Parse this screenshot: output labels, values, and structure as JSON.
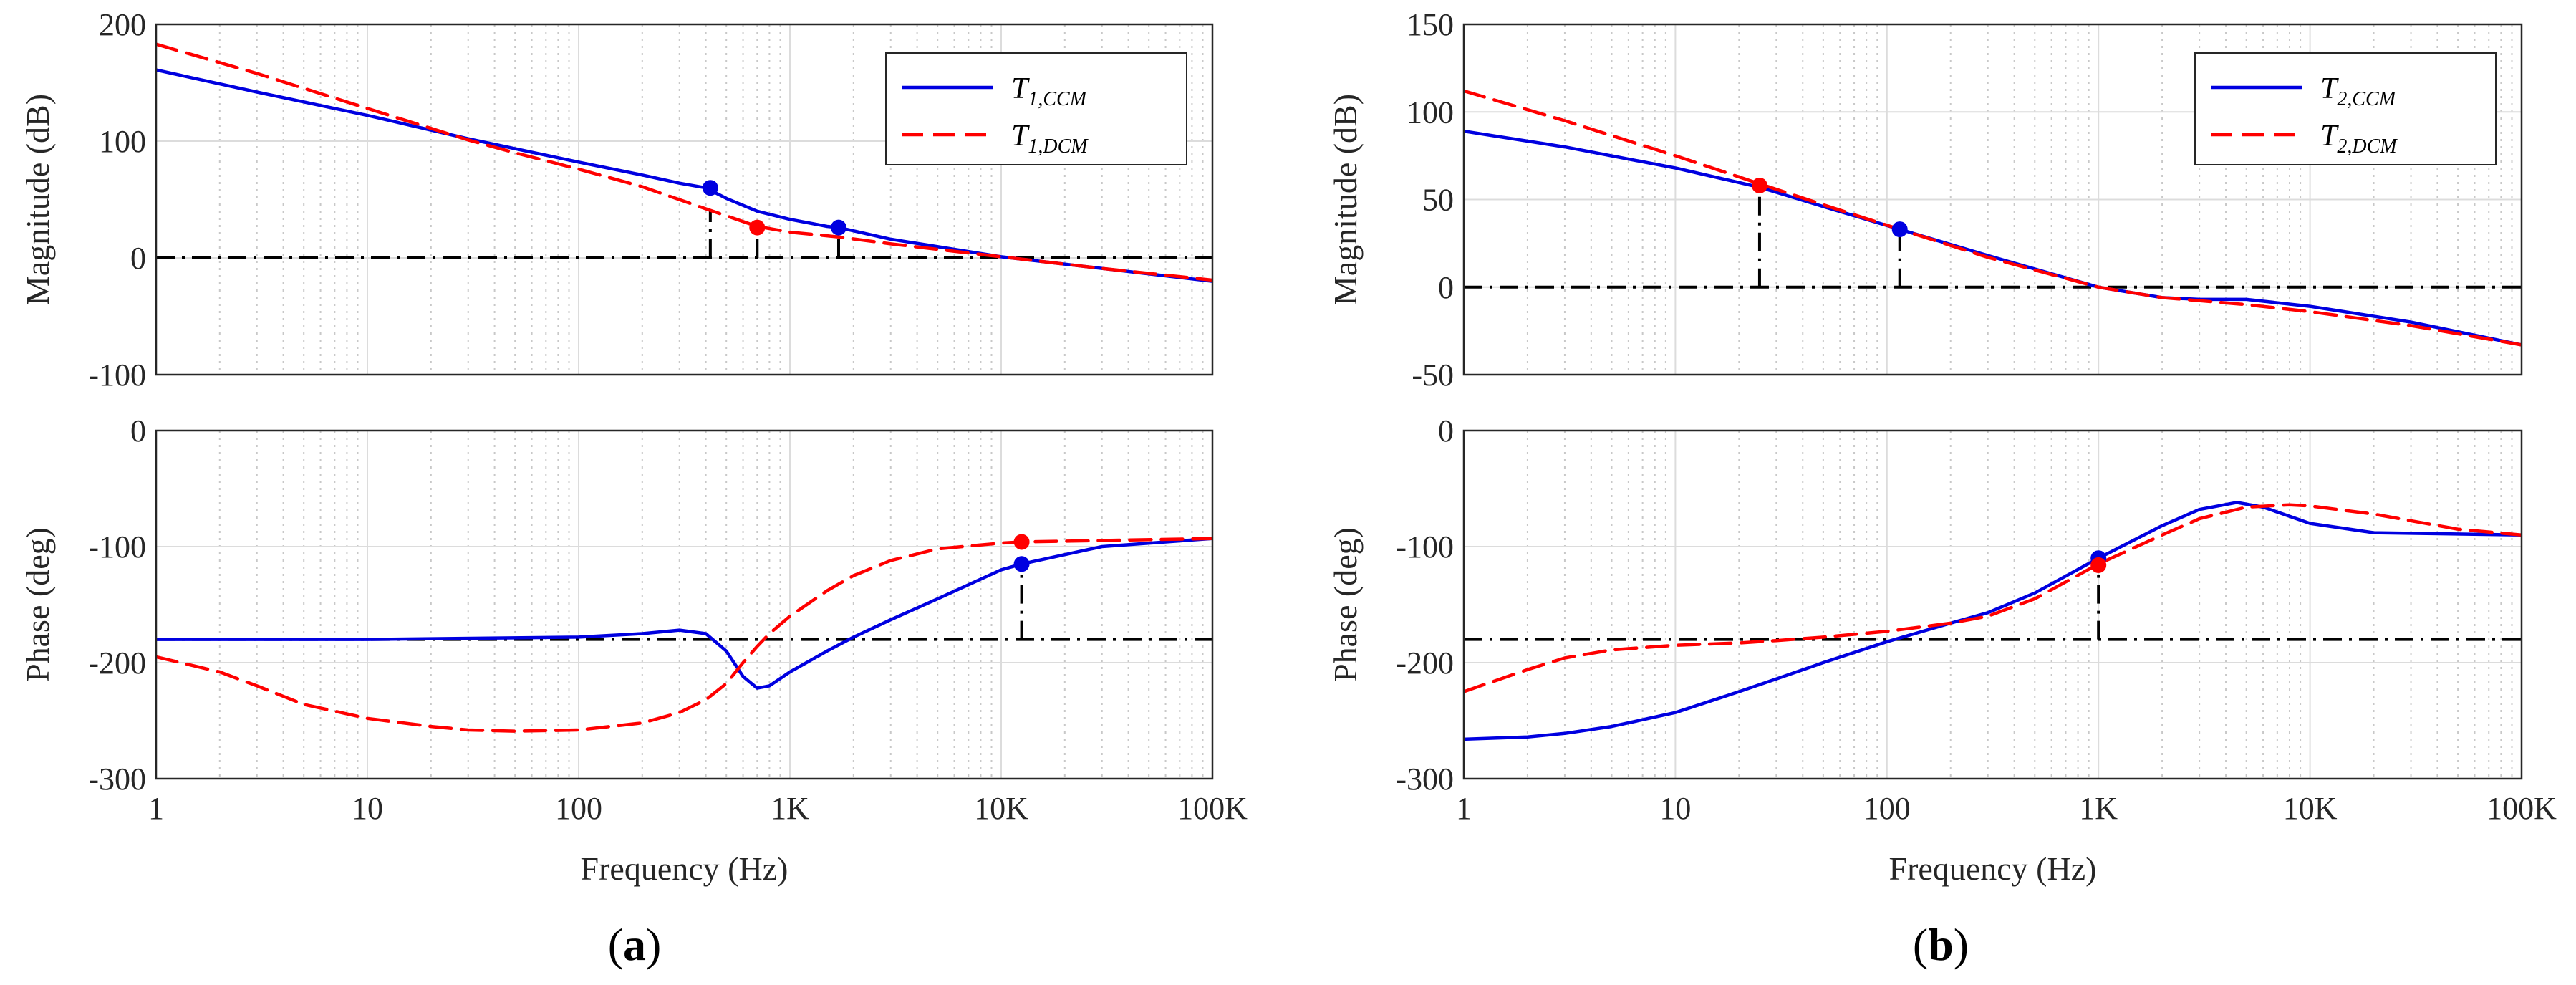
{
  "chart_data": [
    {
      "type": "line",
      "panel": "a",
      "label_prefix": "(",
      "label_letter": "a",
      "label_suffix": ")",
      "x_scale": "log",
      "xlim": [
        1,
        100000
      ],
      "xlabel": "Frequency (Hz)",
      "x_ticks": [
        1,
        10,
        100,
        1000,
        10000,
        100000
      ],
      "x_tick_labels": [
        "1",
        "10",
        "100",
        "1K",
        "10K",
        "100K"
      ],
      "magnitude": {
        "ylabel": "Magnitude (dB)",
        "ylim": [
          -100,
          200
        ],
        "y_ticks": [
          -100,
          0,
          100,
          200
        ],
        "y_tick_labels": [
          "-100",
          "0",
          "100",
          "200"
        ],
        "legend_position": "top-right",
        "series": [
          {
            "name": "T",
            "sub": "1,CCM",
            "color": "#0000e0",
            "dash": "solid",
            "x": [
              1,
              3,
              10,
              30,
              100,
              200,
              300,
              400,
              500,
              700,
              1000,
              1500,
              1700,
              3000,
              10000,
              30000,
              100000
            ],
            "y": [
              161,
              142,
              122,
              102,
              82,
              71,
              64,
              60,
              51,
              40,
              33,
              27,
              26,
              16,
              1,
              -9,
              -20
            ]
          },
          {
            "name": "T",
            "sub": "1,DCM",
            "color": "#ff0000",
            "dash": "dashed",
            "x": [
              1,
              3,
              10,
              30,
              50,
              100,
              200,
              400,
              700,
              1000,
              1700,
              3000,
              10000,
              30000,
              100000
            ],
            "y": [
              183,
              158,
              128,
              101,
              90,
              76,
              61,
              42,
              27,
              22,
              18,
              12,
              1,
              -9,
              -19
            ]
          }
        ],
        "markers": [
          {
            "x": 420,
            "y": 60,
            "color": "#0000e0"
          },
          {
            "x": 700,
            "y": 26,
            "color": "#ff0000"
          },
          {
            "x": 1700,
            "y": 26,
            "color": "#0000e0"
          }
        ],
        "reference_line": {
          "y": 0,
          "style": "dash-dot"
        },
        "step_lines": [
          {
            "x": 420,
            "y": 40
          },
          {
            "x": 700,
            "y": 20
          },
          {
            "x": 1700,
            "y": 18
          }
        ]
      },
      "phase": {
        "ylabel": "Phase (deg)",
        "ylim": [
          -300,
          0
        ],
        "y_ticks": [
          -300,
          -200,
          -100,
          0
        ],
        "y_tick_labels": [
          "-300",
          "-200",
          "-100",
          "0"
        ],
        "series": [
          {
            "name": "T",
            "sub": "1,CCM",
            "color": "#0000e0",
            "dash": "solid",
            "x": [
              1,
              10,
              100,
              200,
              300,
              400,
              500,
              600,
              700,
              800,
              1000,
              1500,
              2000,
              3000,
              5000,
              10000,
              12500,
              30000,
              100000
            ],
            "y": [
              -180,
              -180,
              -178,
              -175,
              -172,
              -175,
              -190,
              -212,
              -222,
              -220,
              -208,
              -190,
              -178,
              -163,
              -145,
              -120,
              -115,
              -100,
              -93
            ]
          },
          {
            "name": "T",
            "sub": "1,DCM",
            "color": "#ff0000",
            "dash": "dashed",
            "x": [
              1,
              2,
              3,
              5,
              10,
              20,
              30,
              50,
              100,
              200,
              300,
              400,
              500,
              600,
              700,
              800,
              1000,
              1500,
              2000,
              3000,
              5000,
              10000,
              12500,
              100000
            ],
            "y": [
              -195,
              -208,
              -220,
              -236,
              -248,
              -255,
              -258,
              -259,
              -258,
              -252,
              -243,
              -232,
              -218,
              -200,
              -186,
              -175,
              -160,
              -138,
              -125,
              -112,
              -102,
              -97,
              -96,
              -93
            ]
          }
        ],
        "markers": [
          {
            "x": 12500,
            "y": -96,
            "color": "#ff0000"
          },
          {
            "x": 12500,
            "y": -115,
            "color": "#0000e0"
          }
        ],
        "reference_line": {
          "y": -180,
          "style": "dash-dot"
        },
        "step_lines": [
          {
            "x": 12500,
            "y": -115
          }
        ]
      }
    },
    {
      "type": "line",
      "panel": "b",
      "label_prefix": "(",
      "label_letter": "b",
      "label_suffix": ")",
      "x_scale": "log",
      "xlim": [
        1,
        100000
      ],
      "xlabel": "Frequency (Hz)",
      "x_ticks": [
        1,
        10,
        100,
        1000,
        10000,
        100000
      ],
      "x_tick_labels": [
        "1",
        "10",
        "100",
        "1K",
        "10K",
        "100K"
      ],
      "magnitude": {
        "ylabel": "Magnitude (dB)",
        "ylim": [
          -50,
          150
        ],
        "y_ticks": [
          -50,
          0,
          50,
          100,
          150
        ],
        "y_tick_labels": [
          "-50",
          "0",
          "50",
          "100",
          "150"
        ],
        "legend_position": "top-right",
        "series": [
          {
            "name": "T",
            "sub": "2,CCM",
            "color": "#0000e0",
            "dash": "solid",
            "x": [
              1,
              3,
              10,
              25,
              50,
              115,
              300,
              1000,
              2000,
              3000,
              5000,
              10000,
              30000,
              100000
            ],
            "y": [
              89,
              80,
              68,
              57,
              46,
              33,
              18,
              0,
              -6,
              -7,
              -7,
              -11,
              -20,
              -33
            ]
          },
          {
            "name": "T",
            "sub": "2,DCM",
            "color": "#ff0000",
            "dash": "dashed",
            "x": [
              1,
              3,
              10,
              25,
              50,
              115,
              300,
              1000,
              2000,
              5000,
              10000,
              30000,
              100000
            ],
            "y": [
              112,
              95,
              75,
              59,
              47,
              33,
              17,
              0,
              -6,
              -10,
              -14,
              -22,
              -33
            ]
          }
        ],
        "markers": [
          {
            "x": 25,
            "y": 58,
            "color": "#ff0000"
          },
          {
            "x": 115,
            "y": 33,
            "color": "#0000e0"
          }
        ],
        "reference_line": {
          "y": 0,
          "style": "dash-dot"
        },
        "step_lines": [
          {
            "x": 25,
            "y": 58
          },
          {
            "x": 115,
            "y": 33
          }
        ]
      },
      "phase": {
        "ylabel": "Phase (deg)",
        "ylim": [
          -300,
          0
        ],
        "y_ticks": [
          -300,
          -200,
          -100,
          0
        ],
        "y_tick_labels": [
          "-300",
          "-200",
          "-100",
          "0"
        ],
        "series": [
          {
            "name": "T",
            "sub": "2,CCM",
            "color": "#0000e0",
            "dash": "solid",
            "x": [
              1,
              2,
              3,
              5,
              10,
              20,
              30,
              50,
              100,
              200,
              300,
              500,
              1000,
              2000,
              3000,
              4500,
              6000,
              10000,
              20000,
              100000
            ],
            "y": [
              -266,
              -264,
              -261,
              -255,
              -243,
              -225,
              -214,
              -200,
              -182,
              -166,
              -157,
              -140,
              -110,
              -82,
              -68,
              -62,
              -66,
              -80,
              -88,
              -90
            ]
          },
          {
            "name": "T",
            "sub": "2,DCM",
            "color": "#ff0000",
            "dash": "dashed",
            "x": [
              1,
              2,
              3,
              5,
              10,
              20,
              30,
              50,
              100,
              200,
              300,
              500,
              1000,
              2000,
              3000,
              5000,
              8000,
              10000,
              20000,
              50000,
              100000
            ],
            "y": [
              -225,
              -206,
              -196,
              -189,
              -185,
              -183,
              -181,
              -178,
              -173,
              -166,
              -160,
              -145,
              -115,
              -90,
              -76,
              -66,
              -64,
              -65,
              -72,
              -85,
              -90
            ]
          }
        ],
        "markers": [
          {
            "x": 1000,
            "y": -110,
            "color": "#0000e0"
          },
          {
            "x": 1000,
            "y": -116,
            "color": "#ff0000"
          }
        ],
        "reference_line": {
          "y": -180,
          "style": "dash-dot"
        },
        "step_lines": [
          {
            "x": 1000,
            "y": -110
          }
        ]
      }
    }
  ]
}
